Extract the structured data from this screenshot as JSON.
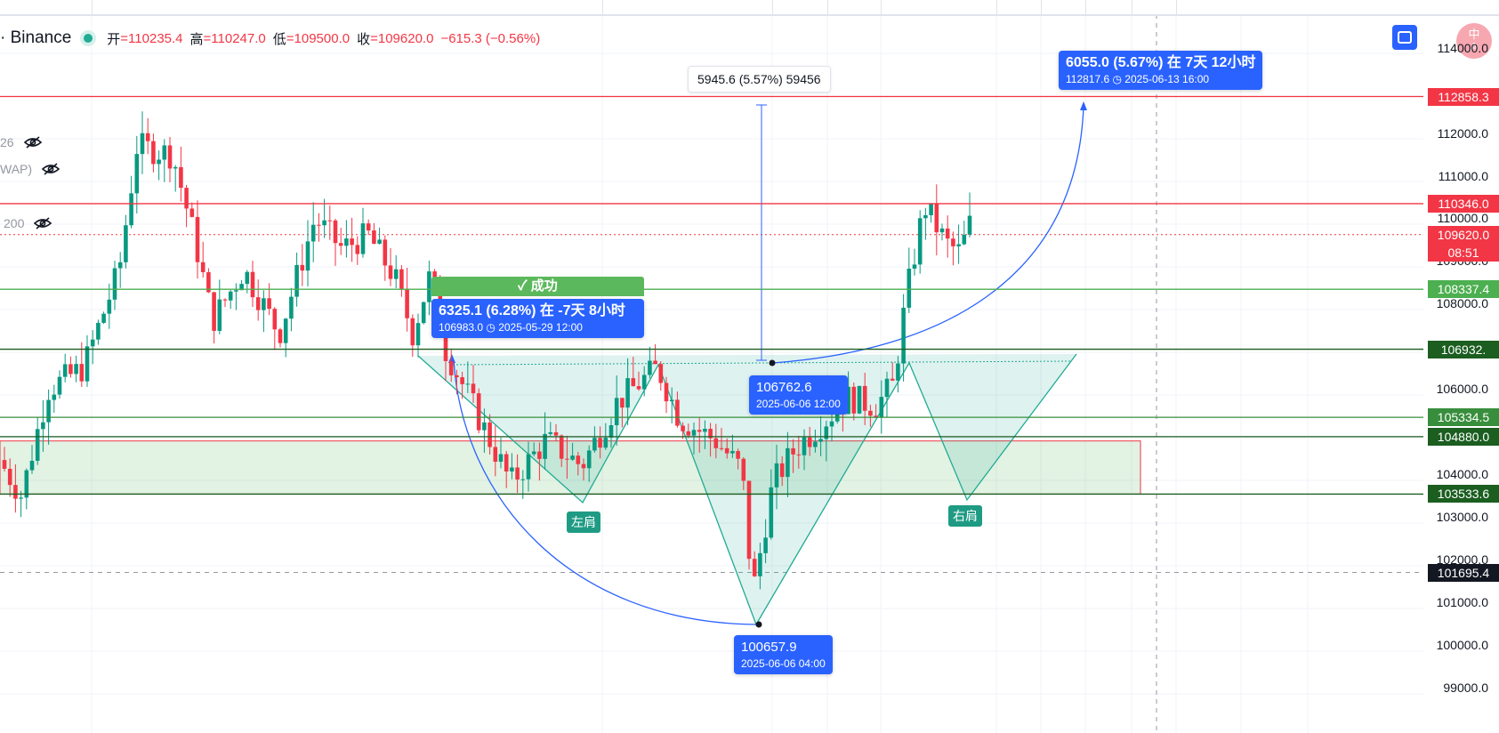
{
  "symbol": "· Binance",
  "ohlc": {
    "open_label": "开",
    "open": "=110235.4",
    "high_label": "高",
    "high": "=110247.0",
    "low_label": "低",
    "low": "=109500.0",
    "close_label": "收",
    "close": "=109620.0",
    "change": "−615.3 (−0.56%)"
  },
  "indicators": [
    "26",
    "WAP)",
    "200"
  ],
  "y_ticks": [
    "114000.0",
    "112000.0",
    "111000.0",
    "110000.0",
    "109000.0",
    "108000.0",
    "106000.0",
    "104000.0",
    "103000.0",
    "102000.0",
    "101000.0",
    "100000.0",
    "99000.0"
  ],
  "price_labels": [
    {
      "text": "112858.3",
      "color": "#f23645"
    },
    {
      "text": "110346.0",
      "color": "#f23645"
    },
    {
      "text": "109620.0",
      "color": "#f23645"
    },
    {
      "text": "08:51",
      "color": "#f23645"
    },
    {
      "text": "108337.4",
      "color": "#4caf50"
    },
    {
      "text": "106932.",
      "color": "#1b5e20"
    },
    {
      "text": "105334.5",
      "color": "#388e3c"
    },
    {
      "text": "104880.0",
      "color": "#1b5e20"
    },
    {
      "text": "103533.6",
      "color": "#1b5e20"
    },
    {
      "text": "101695.4",
      "color": "#131722"
    }
  ],
  "measure_note": "5945.6 (5.57%) 59456",
  "projection_note": {
    "line1": "6055.0 (5.67%) 在 7天 12小时",
    "line2": "112817.6 ◷ 2025-06-13  16:00"
  },
  "success_label": "✓ 成功",
  "drop_note": {
    "line1": "6325.1 (6.28%) 在 -7天 8小时",
    "line2": "106983.0 ◷ 2025-05-29  12:00"
  },
  "point_note_mid": {
    "line1": "106762.6",
    "line2": "2025-06-06 12:00"
  },
  "point_note_low": {
    "line1": "100657.9",
    "line2": "2025-06-06 04:00"
  },
  "left_shoulder": "左肩",
  "right_shoulder": "右肩",
  "avatar_text": "中\nA",
  "chart_data": {
    "type": "candlestick",
    "horizontal_lines": [
      112858.3,
      110346.0,
      108337.4,
      106932.0,
      105334.5,
      104880.0,
      103533.6
    ],
    "current_price": 109620.0,
    "crosshair_price": 101695.4,
    "zone": [
      103533.6,
      104780.0
    ],
    "pattern": "inverse head and shoulders",
    "key_points": {
      "left_shoulder": 103533.6,
      "head": 100657.9,
      "right_shoulder": 103533.6,
      "neckline": 106932.0,
      "target": 112817.6
    },
    "ylim": [
      98500,
      114200
    ]
  }
}
